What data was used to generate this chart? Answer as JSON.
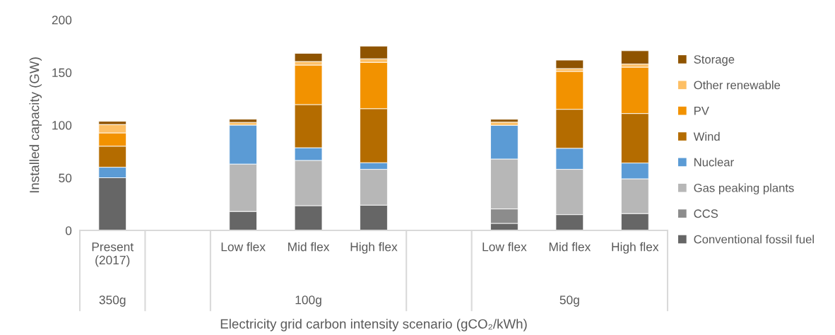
{
  "chart_data": {
    "type": "bar",
    "stacked": true,
    "ylabel": "Installed capacity (GW)",
    "xlabel": "Electricity grid carbon intensity scenario (gCO₂/kWh)",
    "categories": [
      "Present\n(2017)",
      null,
      "Low flex",
      "Mid flex",
      "High flex",
      null,
      "Low flex",
      "Mid flex",
      "High flex"
    ],
    "annotations": [
      "350g",
      "100g",
      "50g"
    ],
    "ylim": [
      0,
      200
    ],
    "yticks": [
      0,
      50,
      100,
      150,
      200
    ],
    "grid": false,
    "legend": "right",
    "series": [
      {
        "name": "Conventional fossil fuel",
        "color": "#666666",
        "values": [
          50,
          null,
          18,
          23.5,
          24,
          null,
          6.7,
          15,
          16
        ]
      },
      {
        "name": "CCS",
        "color": "#8c8c8c",
        "values": [
          0,
          null,
          0,
          0,
          0,
          null,
          13.7,
          0,
          0
        ]
      },
      {
        "name": "Gas peaking plants",
        "color": "#b7b7b7",
        "values": [
          0,
          null,
          45,
          43,
          34,
          null,
          47.4,
          43,
          33
        ]
      },
      {
        "name": "Nuclear",
        "color": "#5b9bd5",
        "values": [
          10,
          null,
          37,
          12,
          6.3,
          null,
          32,
          20,
          15
        ]
      },
      {
        "name": "Wind",
        "color": "#b46c00",
        "values": [
          20,
          null,
          0,
          41,
          51.3,
          null,
          0,
          37,
          47
        ]
      },
      {
        "name": "PV",
        "color": "#f29200",
        "values": [
          12.6,
          null,
          0,
          37.5,
          44,
          null,
          0,
          36,
          44
        ]
      },
      {
        "name": "Other renewable",
        "color": "#fdbf65",
        "values": [
          8,
          null,
          2.6,
          3.4,
          3.4,
          null,
          3,
          2.7,
          3
        ]
      },
      {
        "name": "Storage",
        "color": "#8f5400",
        "values": [
          3,
          null,
          3,
          7.7,
          12,
          null,
          2.7,
          8,
          12.6
        ]
      }
    ]
  }
}
